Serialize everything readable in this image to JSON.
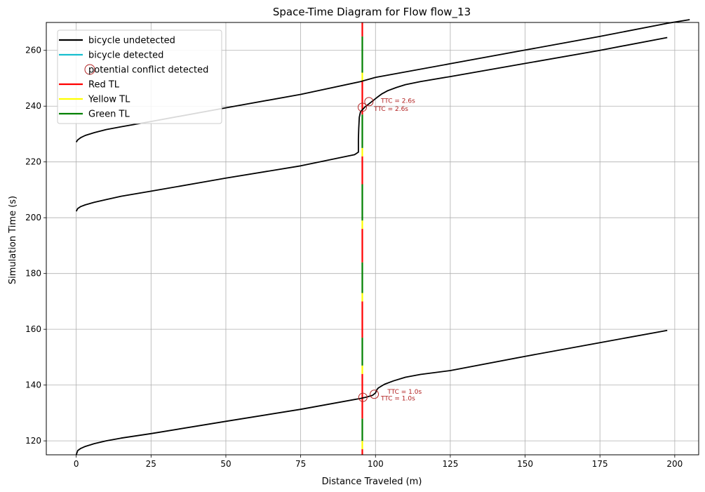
{
  "chart_data": {
    "type": "line",
    "title": "Space-Time Diagram for Flow flow_13",
    "xlabel": "Distance Traveled (m)",
    "ylabel": "Simulation Time (s)",
    "xlim": [
      -10,
      208
    ],
    "ylim": [
      115,
      270
    ],
    "x_ticks": [
      0,
      25,
      50,
      75,
      100,
      125,
      150,
      175,
      200
    ],
    "y_ticks": [
      120,
      140,
      160,
      180,
      200,
      220,
      240,
      260
    ],
    "grid": true,
    "legend_position": "top-left",
    "legend": [
      {
        "label": "bicycle undetected",
        "kind": "line",
        "color": "#000000"
      },
      {
        "label": "bicycle detected",
        "kind": "line",
        "color": "#17becf"
      },
      {
        "label": "potential conflict detected",
        "kind": "circle",
        "color": "#b22222"
      },
      {
        "label": "Red TL",
        "kind": "line",
        "color": "#ff0000"
      },
      {
        "label": "Yellow TL",
        "kind": "line",
        "color": "#ffff00"
      },
      {
        "label": "Green TL",
        "kind": "line",
        "color": "#008000"
      }
    ],
    "traffic_light": {
      "x": 95.6,
      "phases": [
        {
          "state": "red",
          "start": 115,
          "end": 117
        },
        {
          "state": "yellow",
          "start": 117,
          "end": 120
        },
        {
          "state": "green",
          "start": 120,
          "end": 128
        },
        {
          "state": "red",
          "start": 128,
          "end": 144
        },
        {
          "state": "yellow",
          "start": 144,
          "end": 147
        },
        {
          "state": "green",
          "start": 147,
          "end": 157
        },
        {
          "state": "red",
          "start": 157,
          "end": 170
        },
        {
          "state": "yellow",
          "start": 170,
          "end": 173
        },
        {
          "state": "green",
          "start": 173,
          "end": 184
        },
        {
          "state": "red",
          "start": 184,
          "end": 196
        },
        {
          "state": "yellow",
          "start": 196,
          "end": 199
        },
        {
          "state": "green",
          "start": 199,
          "end": 212
        },
        {
          "state": "red",
          "start": 212,
          "end": 222
        },
        {
          "state": "yellow",
          "start": 222,
          "end": 225
        },
        {
          "state": "green",
          "start": 225,
          "end": 237
        },
        {
          "state": "red",
          "start": 237,
          "end": 249
        },
        {
          "state": "yellow",
          "start": 249,
          "end": 252
        },
        {
          "state": "green",
          "start": 252,
          "end": 265
        },
        {
          "state": "red",
          "start": 265,
          "end": 270
        }
      ]
    },
    "series": [
      {
        "color": "#000000",
        "points": [
          [
            0,
            115
          ],
          [
            0.5,
            116.5
          ],
          [
            1.5,
            117.3
          ],
          [
            3,
            118.0
          ],
          [
            6,
            119.0
          ],
          [
            10,
            120.0
          ],
          [
            15,
            121.0
          ],
          [
            25,
            122.6
          ],
          [
            50,
            127.0
          ],
          [
            75,
            131.3
          ],
          [
            95,
            135.2
          ],
          [
            97,
            135.7
          ],
          [
            99,
            136.3
          ],
          [
            100,
            137.2
          ],
          [
            100.5,
            138.4
          ],
          [
            101,
            139.0
          ],
          [
            103,
            140.3
          ],
          [
            106,
            141.5
          ],
          [
            110,
            142.8
          ],
          [
            115,
            143.8
          ],
          [
            125,
            145.2
          ],
          [
            150,
            150.3
          ],
          [
            175,
            155.2
          ],
          [
            197.5,
            159.6
          ]
        ]
      },
      {
        "color": "#000000",
        "points": [
          [
            0,
            202.3
          ],
          [
            0.5,
            203.3
          ],
          [
            1.5,
            204.0
          ],
          [
            3,
            204.6
          ],
          [
            6,
            205.5
          ],
          [
            10,
            206.5
          ],
          [
            15,
            207.7
          ],
          [
            25,
            209.5
          ],
          [
            50,
            214.2
          ],
          [
            75,
            218.6
          ],
          [
            93,
            222.6
          ],
          [
            94.3,
            223.5
          ],
          [
            94.3,
            228
          ],
          [
            94.4,
            232
          ],
          [
            94.6,
            236
          ],
          [
            95,
            238
          ],
          [
            96.5,
            239.7
          ],
          [
            100.5,
            243.1
          ],
          [
            102,
            244.3
          ],
          [
            104,
            245.5
          ],
          [
            107,
            246.7
          ],
          [
            110,
            247.7
          ],
          [
            115,
            248.8
          ],
          [
            125,
            250.6
          ],
          [
            150,
            255.3
          ],
          [
            175,
            260.0
          ],
          [
            197.5,
            264.6
          ]
        ]
      },
      {
        "color": "#000000",
        "points": [
          [
            0,
            227.1
          ],
          [
            0.5,
            227.9
          ],
          [
            1.5,
            228.7
          ],
          [
            3,
            229.5
          ],
          [
            6,
            230.5
          ],
          [
            10,
            231.6
          ],
          [
            15,
            232.6
          ],
          [
            25,
            234.5
          ],
          [
            50,
            239.4
          ],
          [
            75,
            244.2
          ],
          [
            95,
            248.8
          ],
          [
            100,
            250.3
          ],
          [
            125,
            255.2
          ],
          [
            150,
            260.1
          ],
          [
            175,
            265.0
          ],
          [
            197.5,
            269.7
          ],
          [
            205,
            271.2
          ]
        ]
      }
    ],
    "conflicts": [
      {
        "x": 95.8,
        "y": 135.6,
        "label": "TTC = 1.0s",
        "label_x": 101.8,
        "label_y": 135.2
      },
      {
        "x": 99.6,
        "y": 136.7,
        "label": "TTC = 1.0s",
        "label_x": 104.0,
        "label_y": 137.6
      },
      {
        "x": 95.6,
        "y": 239.6,
        "label": "TTC = 2.6s",
        "label_x": 99.5,
        "label_y": 239.0
      },
      {
        "x": 97.8,
        "y": 241.6,
        "label": "TTC = 2.6s",
        "label_x": 101.8,
        "label_y": 242.0
      }
    ]
  }
}
